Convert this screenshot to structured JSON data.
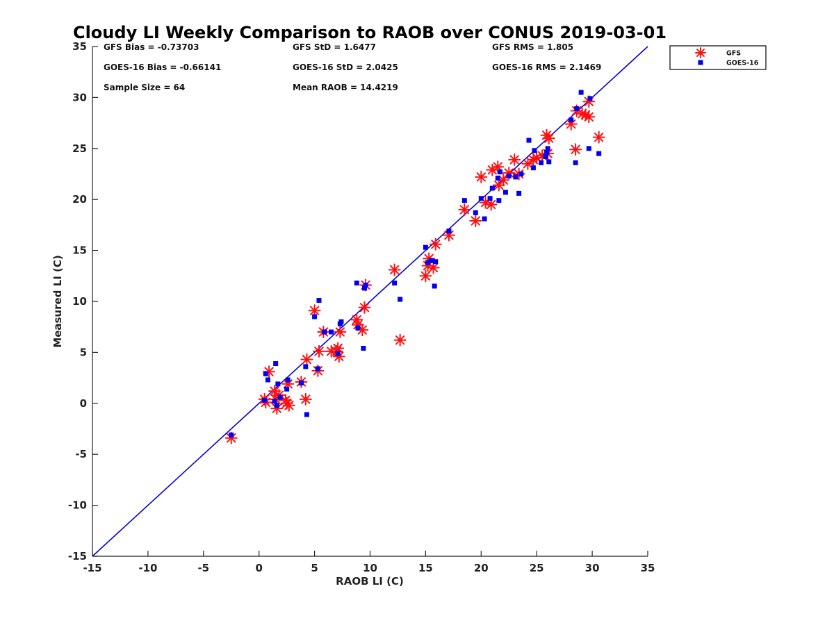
{
  "chart_data": {
    "type": "scatter",
    "title": "Cloudy LI Weekly Comparison to RAOB over CONUS 2019-03-01",
    "xlabel": "RAOB LI (C)",
    "ylabel": "Measured LI (C)",
    "xlim": [
      -15,
      35
    ],
    "ylim": [
      -15,
      35
    ],
    "xticks": [
      "-15",
      "-10",
      "-5",
      "0",
      "5",
      "10",
      "15",
      "20",
      "25",
      "30",
      "35"
    ],
    "yticks": [
      "-15",
      "-10",
      "-5",
      "0",
      "5",
      "10",
      "15",
      "20",
      "25",
      "30",
      "35"
    ],
    "grid": false,
    "legend_position": "outside top-right",
    "reference_line": {
      "x": [
        -15,
        35
      ],
      "y": [
        -15,
        35
      ],
      "color": "#0000dd"
    },
    "stats": [
      [
        "GFS Bias = -0.73703",
        "GFS StD = 1.6477",
        "GFS RMS = 1.805"
      ],
      [
        "GOES-16 Bias = -0.66141",
        "GOES-16 StD = 2.0425",
        "GOES-16 RMS = 2.1469"
      ],
      [
        "Sample Size = 64",
        "Mean RAOB = 14.4219",
        ""
      ]
    ],
    "series": [
      {
        "name": "GFS",
        "marker": "asterisk",
        "color": "#ff1010",
        "points": [
          [
            -2.5,
            -3.4
          ],
          [
            0.5,
            0.4
          ],
          [
            0.6,
            0.1
          ],
          [
            0.9,
            3.1
          ],
          [
            1.4,
            1.2
          ],
          [
            1.5,
            0.4
          ],
          [
            1.6,
            -0.5
          ],
          [
            1.8,
            0.8
          ],
          [
            2.4,
            0.3
          ],
          [
            2.5,
            0.0
          ],
          [
            2.6,
            1.9
          ],
          [
            2.7,
            -0.2
          ],
          [
            3.8,
            2.1
          ],
          [
            4.2,
            0.4
          ],
          [
            4.3,
            4.3
          ],
          [
            5.0,
            9.1
          ],
          [
            5.3,
            3.2
          ],
          [
            5.4,
            5.1
          ],
          [
            5.8,
            7.0
          ],
          [
            6.5,
            5.1
          ],
          [
            7.0,
            5.1
          ],
          [
            7.1,
            5.4
          ],
          [
            7.2,
            4.6
          ],
          [
            7.3,
            7.0
          ],
          [
            8.8,
            8.2
          ],
          [
            8.9,
            7.7
          ],
          [
            9.3,
            7.2
          ],
          [
            9.5,
            9.4
          ],
          [
            9.6,
            11.6
          ],
          [
            12.2,
            13.1
          ],
          [
            12.7,
            6.2
          ],
          [
            15.0,
            12.5
          ],
          [
            15.2,
            13.5
          ],
          [
            15.3,
            14.2
          ],
          [
            15.7,
            13.3
          ],
          [
            15.9,
            15.6
          ],
          [
            17.1,
            16.5
          ],
          [
            18.5,
            19.0
          ],
          [
            19.5,
            17.9
          ],
          [
            20.0,
            22.2
          ],
          [
            20.4,
            19.7
          ],
          [
            20.9,
            19.5
          ],
          [
            21.0,
            22.9
          ],
          [
            21.5,
            23.2
          ],
          [
            21.6,
            21.4
          ],
          [
            22.0,
            21.9
          ],
          [
            22.5,
            22.6
          ],
          [
            23.0,
            23.9
          ],
          [
            23.4,
            22.5
          ],
          [
            24.2,
            23.5
          ],
          [
            24.7,
            23.9
          ],
          [
            25.0,
            24.1
          ],
          [
            25.5,
            24.3
          ],
          [
            25.9,
            26.3
          ],
          [
            26.0,
            24.5
          ],
          [
            26.1,
            26.0
          ],
          [
            28.1,
            27.4
          ],
          [
            28.5,
            24.9
          ],
          [
            28.6,
            28.7
          ],
          [
            29.1,
            28.4
          ],
          [
            29.7,
            28.1
          ],
          [
            29.7,
            29.6
          ],
          [
            30.6,
            26.1
          ],
          [
            29.4,
            28.3
          ]
        ]
      },
      {
        "name": "GOES-16",
        "marker": "square",
        "color": "#0000ee",
        "points": [
          [
            -2.5,
            -3.1
          ],
          [
            0.5,
            0.3
          ],
          [
            0.6,
            2.9
          ],
          [
            0.8,
            2.3
          ],
          [
            1.4,
            0.2
          ],
          [
            1.5,
            3.9
          ],
          [
            1.6,
            -0.2
          ],
          [
            1.7,
            1.9
          ],
          [
            1.9,
            0.6
          ],
          [
            2.5,
            1.4
          ],
          [
            2.6,
            2.3
          ],
          [
            3.8,
            2.0
          ],
          [
            4.2,
            3.6
          ],
          [
            4.3,
            -1.1
          ],
          [
            5.0,
            8.5
          ],
          [
            5.3,
            3.4
          ],
          [
            5.4,
            10.1
          ],
          [
            5.9,
            7.0
          ],
          [
            6.5,
            7.0
          ],
          [
            7.1,
            4.9
          ],
          [
            7.3,
            7.8
          ],
          [
            7.4,
            8.0
          ],
          [
            8.8,
            11.8
          ],
          [
            8.9,
            7.4
          ],
          [
            9.4,
            5.4
          ],
          [
            9.5,
            11.3
          ],
          [
            9.6,
            11.6
          ],
          [
            12.2,
            11.8
          ],
          [
            12.7,
            10.2
          ],
          [
            15.0,
            15.3
          ],
          [
            15.2,
            13.8
          ],
          [
            15.5,
            14.0
          ],
          [
            15.8,
            11.5
          ],
          [
            15.9,
            13.9
          ],
          [
            17.1,
            16.9
          ],
          [
            18.5,
            19.9
          ],
          [
            19.5,
            18.7
          ],
          [
            20.0,
            20.1
          ],
          [
            20.3,
            18.1
          ],
          [
            20.8,
            20.1
          ],
          [
            21.0,
            21.1
          ],
          [
            21.5,
            22.1
          ],
          [
            21.6,
            19.9
          ],
          [
            21.7,
            22.7
          ],
          [
            22.2,
            20.7
          ],
          [
            22.5,
            22.3
          ],
          [
            23.1,
            22.2
          ],
          [
            23.4,
            20.6
          ],
          [
            23.6,
            22.5
          ],
          [
            24.3,
            25.8
          ],
          [
            24.7,
            23.1
          ],
          [
            24.8,
            24.8
          ],
          [
            25.4,
            23.6
          ],
          [
            25.9,
            24.6
          ],
          [
            26.0,
            25.0
          ],
          [
            26.1,
            23.7
          ],
          [
            28.1,
            27.8
          ],
          [
            28.5,
            23.6
          ],
          [
            28.6,
            28.9
          ],
          [
            29.0,
            30.5
          ],
          [
            29.7,
            25.0
          ],
          [
            29.8,
            29.9
          ],
          [
            30.6,
            24.5
          ],
          [
            25.8,
            24.2
          ]
        ]
      }
    ]
  }
}
